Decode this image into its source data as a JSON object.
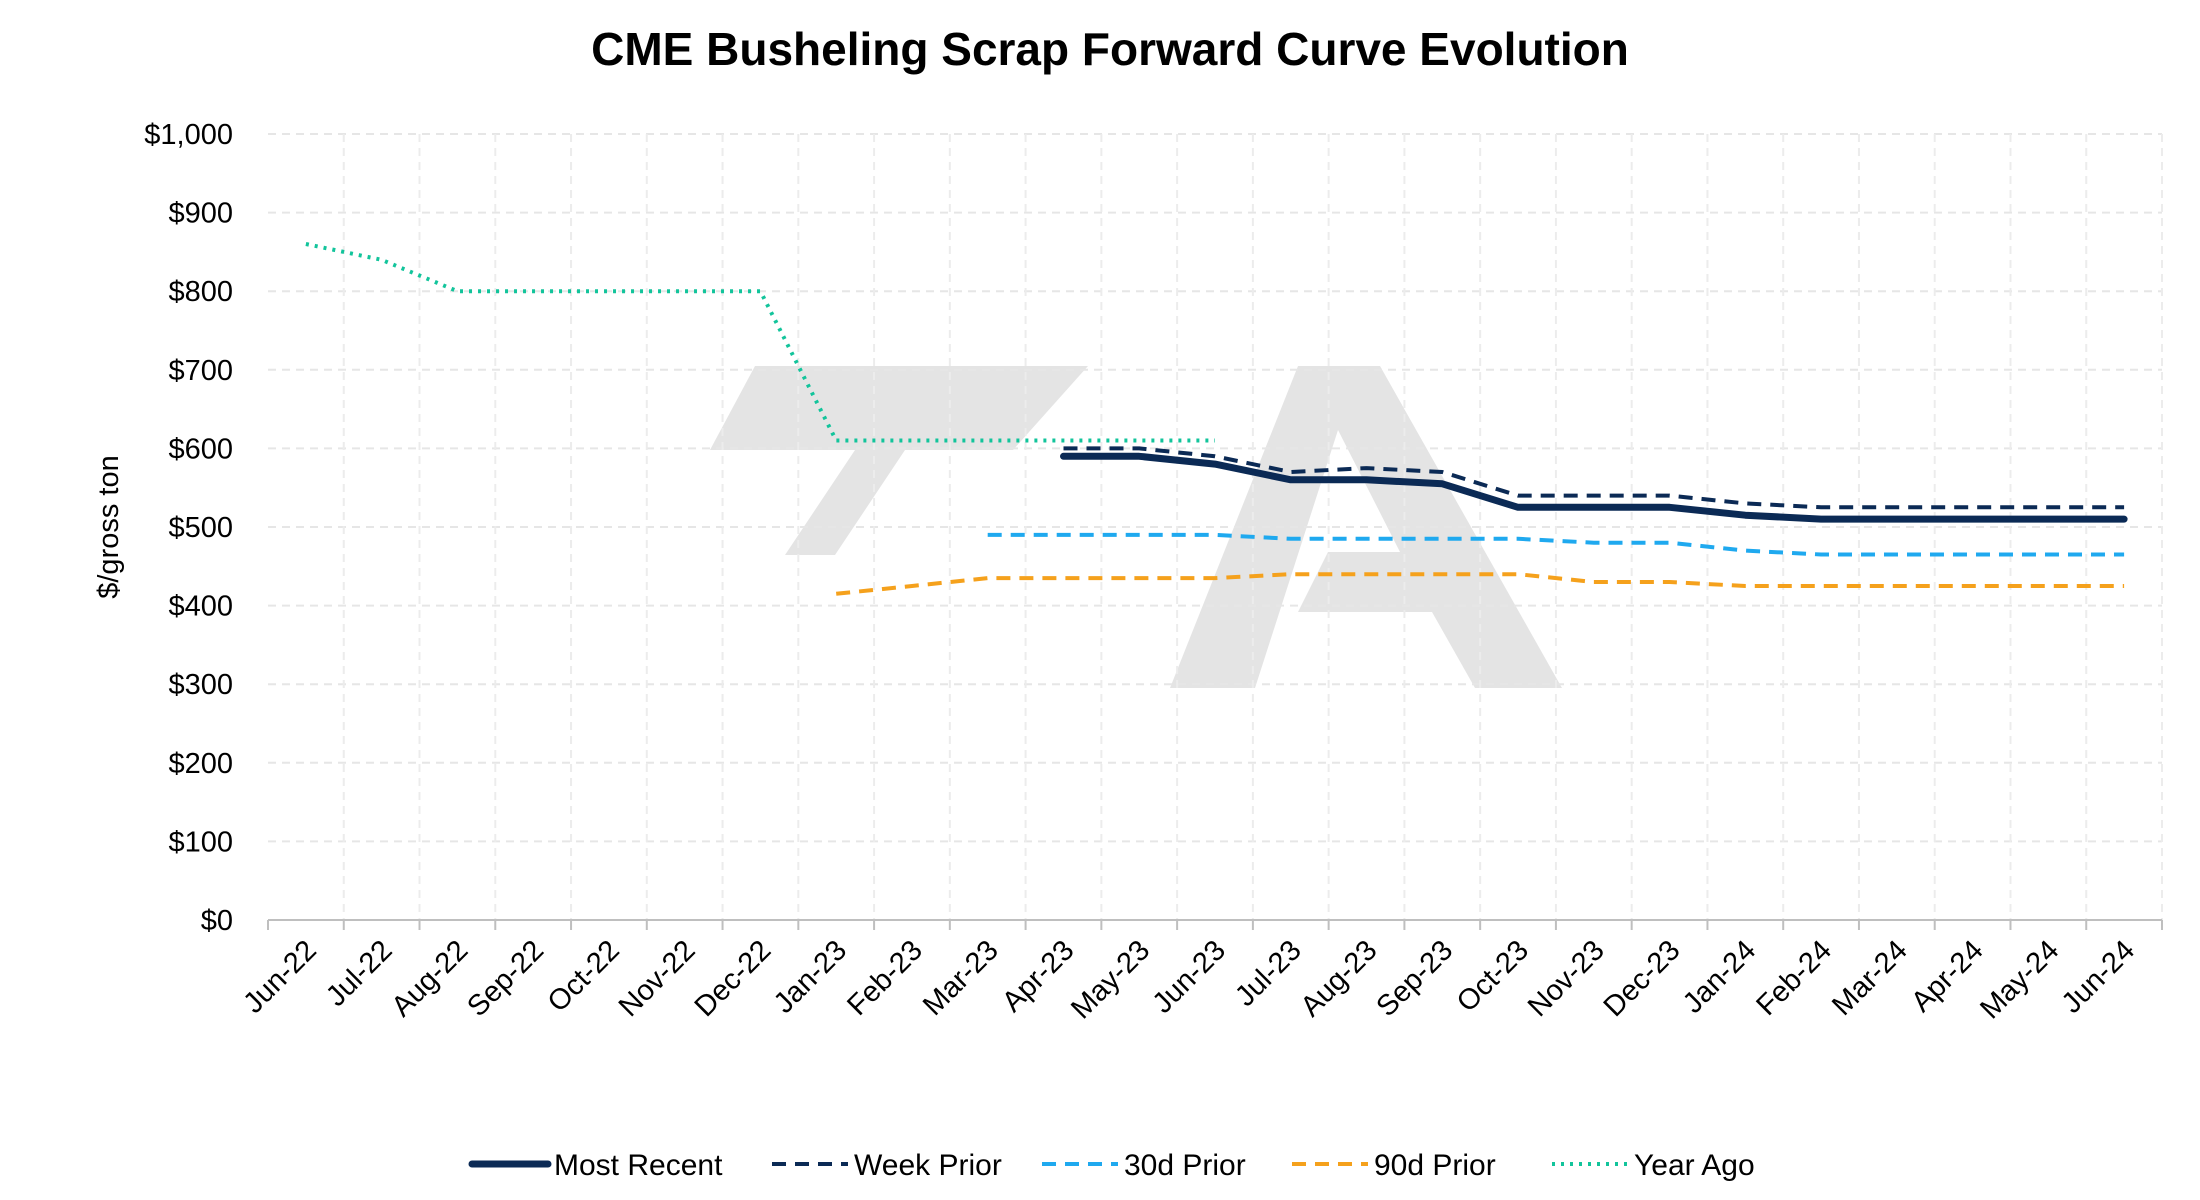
{
  "chart_data": {
    "type": "line",
    "title": "CME Busheling Scrap Forward Curve Evolution",
    "xlabel": "",
    "ylabel": "$/gross ton",
    "ylim": [
      0,
      1000
    ],
    "y_ticks": [
      0,
      100,
      200,
      300,
      400,
      500,
      600,
      700,
      800,
      900,
      1000
    ],
    "y_tick_labels": [
      "$0",
      "$100",
      "$200",
      "$300",
      "$400",
      "$500",
      "$600",
      "$700",
      "$800",
      "$900",
      "$1,000"
    ],
    "categories": [
      "Jun-22",
      "Jul-22",
      "Aug-22",
      "Sep-22",
      "Oct-22",
      "Nov-22",
      "Dec-22",
      "Jan-23",
      "Feb-23",
      "Mar-23",
      "Apr-23",
      "May-23",
      "Jun-23",
      "Jul-23",
      "Aug-23",
      "Sep-23",
      "Oct-23",
      "Nov-23",
      "Dec-23",
      "Jan-24",
      "Feb-24",
      "Mar-24",
      "Apr-24",
      "May-24",
      "Jun-24"
    ],
    "grid": true,
    "legend_position": "bottom",
    "series": [
      {
        "name": "Most Recent",
        "color": "#0b2a55",
        "style": "solid",
        "values": [
          null,
          null,
          null,
          null,
          null,
          null,
          null,
          null,
          null,
          null,
          590,
          590,
          580,
          560,
          560,
          555,
          525,
          525,
          525,
          515,
          510,
          510,
          510,
          510,
          510
        ]
      },
      {
        "name": "Week Prior",
        "color": "#0b2a55",
        "style": "dashed",
        "values": [
          null,
          null,
          null,
          null,
          null,
          null,
          null,
          null,
          null,
          null,
          600,
          600,
          590,
          570,
          575,
          570,
          540,
          540,
          540,
          530,
          525,
          525,
          525,
          525,
          525
        ]
      },
      {
        "name": "30d Prior",
        "color": "#1fa9ef",
        "style": "dashed",
        "values": [
          null,
          null,
          null,
          null,
          null,
          null,
          null,
          null,
          null,
          490,
          490,
          490,
          490,
          485,
          485,
          485,
          485,
          480,
          480,
          470,
          465,
          465,
          465,
          465,
          465
        ]
      },
      {
        "name": "90d Prior",
        "color": "#f5a11c",
        "style": "dashed",
        "values": [
          null,
          null,
          null,
          null,
          null,
          null,
          null,
          415,
          425,
          435,
          435,
          435,
          435,
          440,
          440,
          440,
          440,
          430,
          430,
          425,
          425,
          425,
          425,
          425,
          425
        ]
      },
      {
        "name": "Year Ago",
        "color": "#12c49b",
        "style": "dotted",
        "values": [
          860,
          840,
          800,
          800,
          800,
          800,
          800,
          610,
          610,
          610,
          610,
          610,
          610,
          null,
          null,
          null,
          null,
          null,
          null,
          null,
          null,
          null,
          null,
          null,
          null
        ]
      }
    ]
  },
  "watermark": {
    "description": "TA logo",
    "color": "#e3e3e3"
  }
}
